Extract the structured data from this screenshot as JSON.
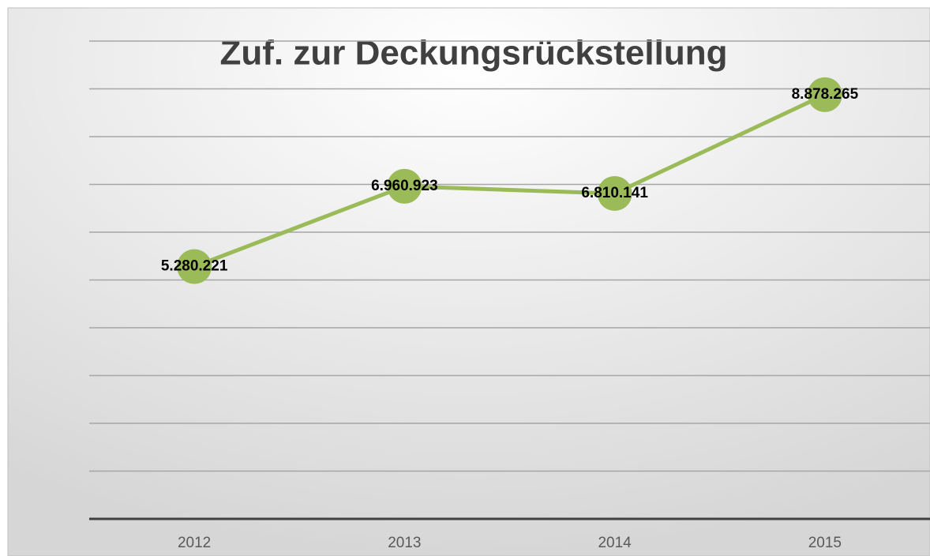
{
  "chart_data": {
    "type": "line",
    "title": "Zuf. zur Deckungsrückstellung",
    "categories": [
      "2012",
      "2013",
      "2014",
      "2015"
    ],
    "series": [
      {
        "color": "#9bbb59",
        "values": [
          5280221,
          6960923,
          6810141,
          8878265
        ],
        "value_labels": [
          "5.280.221",
          "6.960.923",
          "6.810.141",
          "8.878.265"
        ]
      }
    ],
    "ylim": [
      0,
      10000000
    ],
    "yticks": [
      0,
      1000000,
      2000000,
      3000000,
      4000000,
      5000000,
      6000000,
      7000000,
      8000000,
      9000000,
      10000000
    ],
    "grid": true
  }
}
